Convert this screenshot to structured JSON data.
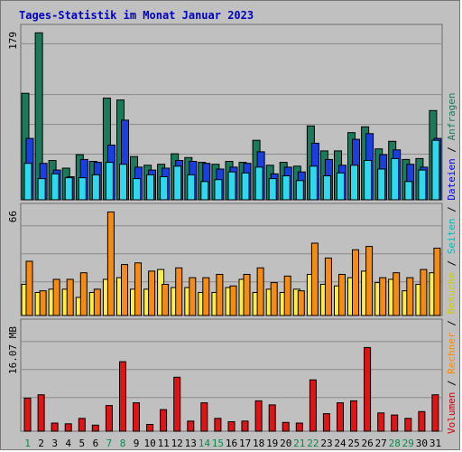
{
  "title": "Tages-Statistik im Monat Januar 2023",
  "chart_data": {
    "type": "bar",
    "categories": [
      "1",
      "2",
      "3",
      "4",
      "5",
      "6",
      "7",
      "8",
      "9",
      "10",
      "11",
      "12",
      "13",
      "14",
      "15",
      "16",
      "17",
      "18",
      "19",
      "20",
      "21",
      "22",
      "23",
      "24",
      "25",
      "26",
      "27",
      "28",
      "29",
      "30",
      "31"
    ],
    "weekend_days": [
      "1",
      "7",
      "8",
      "14",
      "15",
      "21",
      "22",
      "28",
      "29"
    ],
    "colors": {
      "weekday_label": "#000000",
      "weekend_label": "#0a8a4a",
      "anfragen": "#1a7a5a",
      "dateien": "#1a3fe0",
      "seiten": "#2ed8ee",
      "besuche": "#ffee44",
      "rechner": "#f58a14",
      "volumen": "#e01414"
    },
    "panels": [
      {
        "max_label": "179",
        "ymax": 179,
        "series": [
          {
            "name": "Anfragen",
            "values": [
              111,
              174,
              41,
              33,
              47,
              40,
              106,
              104,
              45,
              36,
              37,
              48,
              44,
              39,
              37,
              40,
              39,
              62,
              36,
              39,
              35,
              77,
              51,
              51,
              70,
              76,
              53,
              61,
              42,
              43,
              93
            ]
          },
          {
            "name": "Dateien",
            "values": [
              64,
              38,
              31,
              24,
              42,
              39,
              57,
              83,
              34,
              31,
              33,
              41,
              40,
              38,
              32,
              34,
              38,
              50,
              27,
              34,
              29,
              59,
              42,
              36,
              63,
              69,
              47,
              52,
              37,
              34,
              64
            ]
          },
          {
            "name": "Seiten",
            "values": [
              38,
              22,
              27,
              23,
              23,
              26,
              39,
              37,
              22,
              26,
              24,
              35,
              26,
              19,
              21,
              29,
              28,
              34,
              22,
              25,
              20,
              35,
              25,
              28,
              36,
              41,
              32,
              43,
              19,
              31,
              62
            ]
          }
        ]
      },
      {
        "max_label": "66",
        "ymax": 66,
        "series": [
          {
            "name": "Besuche",
            "values": [
              19,
              14,
              16,
              16,
              11,
              14,
              22,
              23,
              16,
              16,
              28,
              17,
              17,
              14,
              14,
              17,
              22,
              14,
              16,
              14,
              16,
              25,
              19,
              18,
              23,
              27,
              20,
              22,
              15,
              19,
              26
            ]
          },
          {
            "name": "Rechner",
            "values": [
              33,
              15,
              22,
              22,
              26,
              16,
              63,
              31,
              32,
              27,
              19,
              29,
              23,
              23,
              25,
              18,
              25,
              29,
              20,
              24,
              15,
              44,
              35,
              25,
              40,
              42,
              23,
              26,
              23,
              28,
              41
            ]
          }
        ]
      },
      {
        "max_label": "16.07 MB",
        "ymax": 16.07,
        "series": [
          {
            "name": "Volumen",
            "values": [
              4.9,
              5.4,
              1.2,
              1.1,
              1.9,
              0.9,
              3.8,
              10.3,
              4.2,
              1.0,
              3.2,
              8.0,
              1.5,
              4.2,
              1.9,
              1.4,
              1.5,
              4.5,
              3.9,
              1.3,
              1.2,
              7.6,
              2.6,
              4.2,
              4.5,
              12.4,
              2.7,
              2.4,
              1.9,
              2.9,
              5.4
            ]
          }
        ]
      }
    ],
    "legend_right": [
      {
        "name": "Volumen",
        "color": "#cc0000"
      },
      {
        "name": "Rechner",
        "color": "#ff8800"
      },
      {
        "name": "Besuche",
        "color": "#cccc00"
      },
      {
        "name": "Seiten",
        "color": "#00bbbb"
      },
      {
        "name": "Dateien",
        "color": "#0000ee"
      },
      {
        "name": "Anfragen",
        "color": "#1a7a5a"
      }
    ],
    "legend_separator": " / "
  }
}
